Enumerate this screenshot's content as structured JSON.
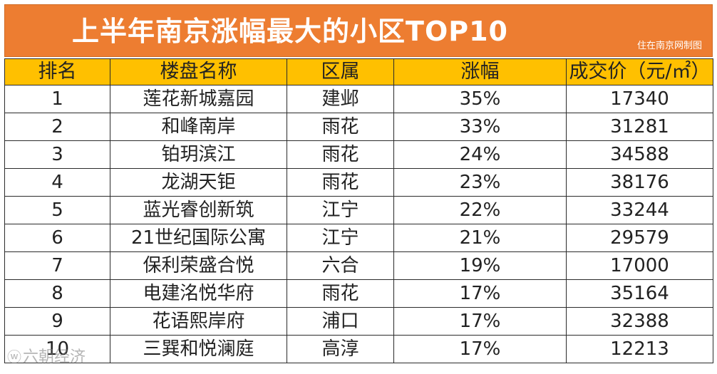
{
  "title": "上半年南京涨幅最大的小区TOP10",
  "source": "住在南京网制图",
  "watermark": "六朝经济",
  "chart_data": {
    "type": "table",
    "title": "上半年南京涨幅最大的小区TOP10",
    "columns": [
      "排名",
      "楼盘名称",
      "区属",
      "涨幅",
      "成交价（元/㎡）"
    ],
    "rows": [
      [
        "1",
        "莲花新城嘉园",
        "建邺",
        "35%",
        "17340"
      ],
      [
        "2",
        "和峰南岸",
        "雨花",
        "33%",
        "31281"
      ],
      [
        "3",
        "铂玥滨江",
        "雨花",
        "24%",
        "34588"
      ],
      [
        "4",
        "龙湖天钜",
        "雨花",
        "23%",
        "38176"
      ],
      [
        "5",
        "蓝光睿创新筑",
        "江宁",
        "22%",
        "33244"
      ],
      [
        "6",
        "21世纪国际公寓",
        "江宁",
        "21%",
        "29579"
      ],
      [
        "7",
        "保利荣盛合悦",
        "六合",
        "19%",
        "17000"
      ],
      [
        "8",
        "电建洺悦华府",
        "雨花",
        "17%",
        "35164"
      ],
      [
        "9",
        "花语熙岸府",
        "浦口",
        "17%",
        "32388"
      ],
      [
        "10",
        "三巽和悦澜庭",
        "高淳",
        "17%",
        "12213"
      ]
    ]
  },
  "colors": {
    "title_bg": "#ed7d31",
    "header_bg": "#ffc000",
    "title_text": "#ffffff"
  }
}
